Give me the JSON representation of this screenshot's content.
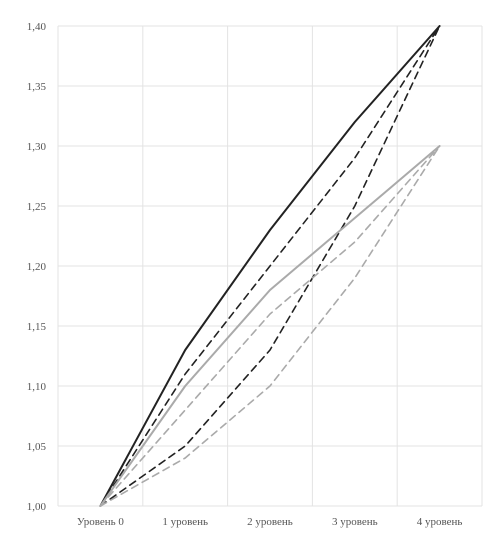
{
  "chart_data": {
    "type": "line",
    "categories": [
      "Уровень 0",
      "1 уровень",
      "2 уровень",
      "3 уровень",
      "4 уровень"
    ],
    "y_tick_labels": [
      "1,00",
      "1,05",
      "1,10",
      "1,15",
      "1,20",
      "1,25",
      "1,30",
      "1,35",
      "1,40"
    ],
    "ylim": [
      1.0,
      1.4
    ],
    "grid": true,
    "legend": "none",
    "series": [
      {
        "values": [
          1.0,
          1.13,
          1.23,
          1.32,
          1.4
        ],
        "color": "#222222",
        "style": "solid"
      },
      {
        "values": [
          1.0,
          1.11,
          1.2,
          1.29,
          1.4
        ],
        "color": "#222222",
        "style": "dashed"
      },
      {
        "values": [
          1.0,
          1.05,
          1.13,
          1.25,
          1.4
        ],
        "color": "#222222",
        "style": "dashed"
      },
      {
        "values": [
          1.0,
          1.1,
          1.18,
          1.24,
          1.3
        ],
        "color": "#aaaaaa",
        "style": "solid"
      },
      {
        "values": [
          1.0,
          1.08,
          1.16,
          1.22,
          1.3
        ],
        "color": "#aaaaaa",
        "style": "dashed"
      },
      {
        "values": [
          1.0,
          1.04,
          1.1,
          1.19,
          1.3
        ],
        "color": "#aaaaaa",
        "style": "dashed"
      }
    ]
  }
}
